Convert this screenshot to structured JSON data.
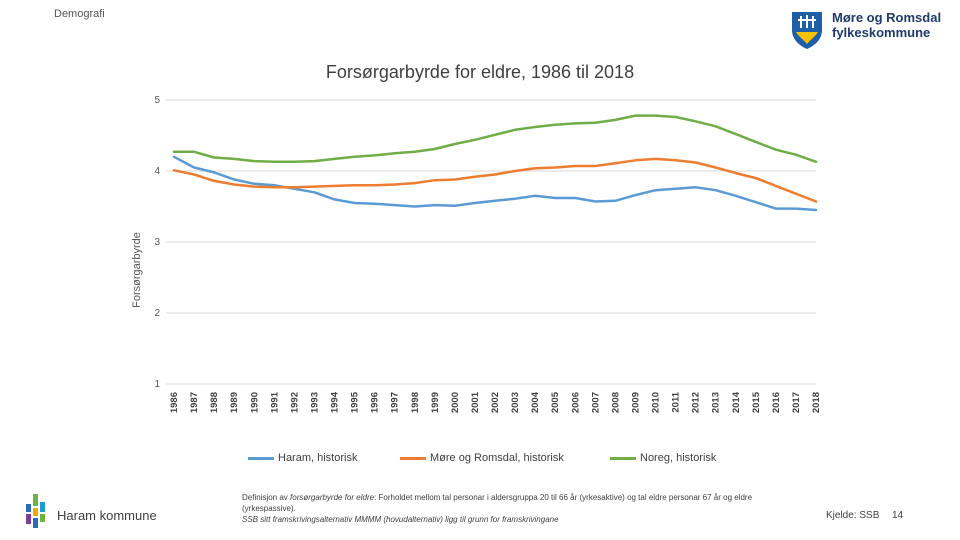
{
  "header": {
    "section_label": "Demografi",
    "org_name_line1": "Møre og Romsdal",
    "org_name_line2": "fylkeskommune"
  },
  "chart_data": {
    "type": "line",
    "title": "Forsørgarbyrde for eldre, 1986 til 2018",
    "xlabel": "",
    "ylabel": "Forsørgarbyrde",
    "ylim": [
      1,
      5
    ],
    "yticks": [
      1,
      2,
      3,
      4,
      5
    ],
    "grid": true,
    "legend_position": "bottom",
    "categories": [
      "1986",
      "1987",
      "1988",
      "1989",
      "1990",
      "1991",
      "1992",
      "1993",
      "1994",
      "1995",
      "1996",
      "1997",
      "1998",
      "1999",
      "2000",
      "2001",
      "2002",
      "2003",
      "2004",
      "2005",
      "2006",
      "2007",
      "2008",
      "2009",
      "2010",
      "2011",
      "2012",
      "2013",
      "2014",
      "2015",
      "2016",
      "2017",
      "2018"
    ],
    "series": [
      {
        "name": "Haram, historisk",
        "color": "#5B9BD5",
        "values": [
          4.2,
          4.05,
          3.98,
          3.88,
          3.82,
          3.8,
          3.75,
          3.7,
          3.6,
          3.55,
          3.54,
          3.52,
          3.5,
          3.52,
          3.51,
          3.55,
          3.58,
          3.61,
          3.65,
          3.62,
          3.62,
          3.57,
          3.58,
          3.66,
          3.73,
          3.75,
          3.77,
          3.73,
          3.65,
          3.56,
          3.47,
          3.47,
          3.45
        ]
      },
      {
        "name": "Møre og Romsdal, historisk",
        "color": "#ED7D31",
        "values": [
          4.01,
          3.95,
          3.86,
          3.81,
          3.78,
          3.77,
          3.77,
          3.78,
          3.79,
          3.8,
          3.8,
          3.81,
          3.83,
          3.87,
          3.88,
          3.92,
          3.95,
          4.0,
          4.04,
          4.05,
          4.07,
          4.07,
          4.11,
          4.15,
          4.17,
          4.15,
          4.12,
          4.05,
          3.97,
          3.9,
          3.79,
          3.68,
          3.57
        ]
      },
      {
        "name": "Noreg, historisk",
        "color": "#70AD47",
        "values": [
          4.27,
          4.27,
          4.19,
          4.17,
          4.14,
          4.13,
          4.13,
          4.14,
          4.17,
          4.2,
          4.22,
          4.25,
          4.27,
          4.31,
          4.38,
          4.44,
          4.51,
          4.58,
          4.62,
          4.65,
          4.67,
          4.68,
          4.72,
          4.78,
          4.78,
          4.76,
          4.7,
          4.63,
          4.52,
          4.41,
          4.3,
          4.23,
          4.13
        ]
      }
    ]
  },
  "footer": {
    "org_name": "Haram kommune",
    "definition_prefix": "Definisjon av ",
    "definition_term": "forsørgarbyrde for eldre",
    "definition_text": ": Forholdet mellom tal personar i aldersgruppa 20 til 66 år (yrkesaktive) og tal eldre personar 67 år og eldre (yrkespassive).",
    "definition_note": "SSB sitt framskrivingsalternativ MMMM (hovudalternativ) ligg til grunn for framskrivingane",
    "source": "Kjelde: SSB",
    "page_number": "14"
  }
}
